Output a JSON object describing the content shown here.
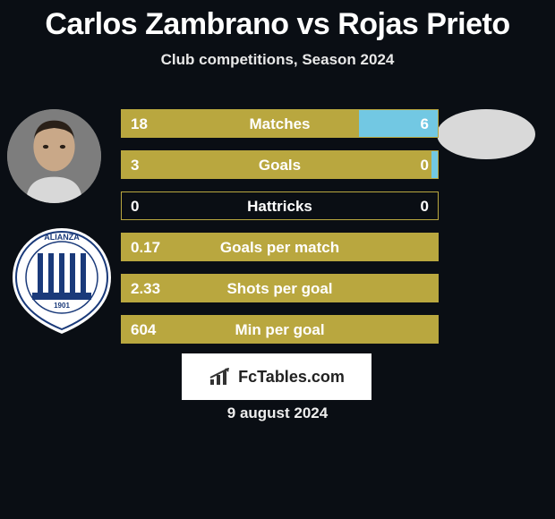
{
  "title": "Carlos Zambrano vs Rojas Prieto",
  "subtitle": "Club competitions, Season 2024",
  "date": "9 august 2024",
  "brand": "FcTables.com",
  "colors": {
    "left_bar": "#b9a73f",
    "right_bar": "#72c8e3",
    "border": "#b9a73f",
    "background": "#0a0e14"
  },
  "bars": [
    {
      "label": "Matches",
      "left_val": "18",
      "right_val": "6",
      "left_pct": 75,
      "right_pct": 25
    },
    {
      "label": "Goals",
      "left_val": "3",
      "right_val": "0",
      "left_pct": 100,
      "right_pct": 2
    },
    {
      "label": "Hattricks",
      "left_val": "0",
      "right_val": "0",
      "left_pct": 0,
      "right_pct": 0
    },
    {
      "label": "Goals per match",
      "left_val": "0.17",
      "right_val": "",
      "left_pct": 100,
      "right_pct": 0
    },
    {
      "label": "Shots per goal",
      "left_val": "2.33",
      "right_val": "",
      "left_pct": 100,
      "right_pct": 0
    },
    {
      "label": "Min per goal",
      "left_val": "604",
      "right_val": "",
      "left_pct": 100,
      "right_pct": 0
    }
  ],
  "crest": {
    "text_top": "ALIANZA",
    "text_bottom": "LIMA",
    "year": "1901"
  }
}
